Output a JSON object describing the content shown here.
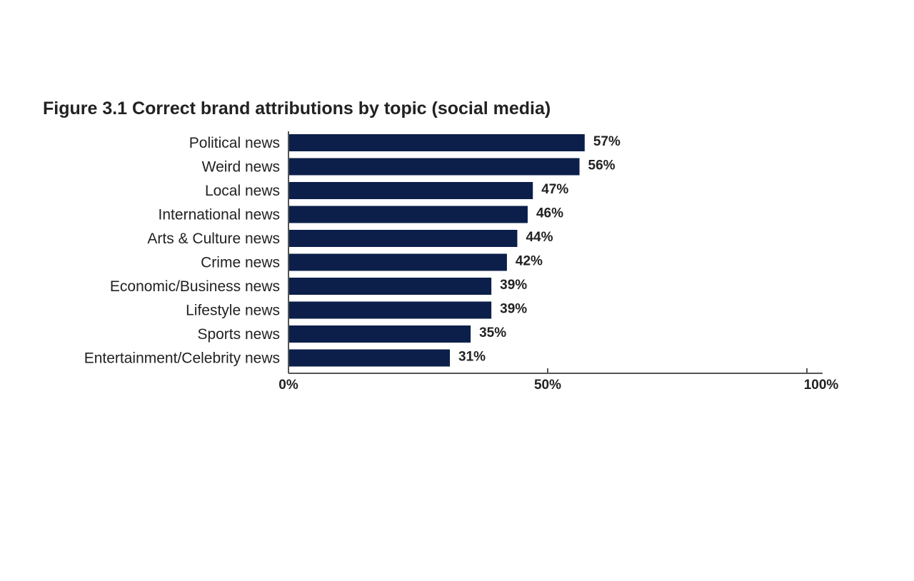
{
  "chart_data": {
    "type": "bar",
    "orientation": "horizontal",
    "title": "Figure 3.1 Correct brand attributions by topic (social media)",
    "categories": [
      "Political news",
      "Weird news",
      "Local news",
      "International news",
      "Arts & Culture news",
      "Crime news",
      "Economic/Business news",
      "Lifestyle news",
      "Sports news",
      "Entertainment/Celebrity news"
    ],
    "values": [
      57,
      56,
      47,
      46,
      44,
      42,
      39,
      39,
      35,
      31
    ],
    "value_labels": [
      "57%",
      "56%",
      "47%",
      "46%",
      "44%",
      "42%",
      "39%",
      "39%",
      "35%",
      "31%"
    ],
    "xlim": [
      0,
      100
    ],
    "x_ticks": [
      0,
      50,
      100
    ],
    "x_tick_labels": [
      "0%",
      "50%",
      "100%"
    ],
    "bar_color": "#0b1f4a",
    "grid": false,
    "legend": "none"
  }
}
